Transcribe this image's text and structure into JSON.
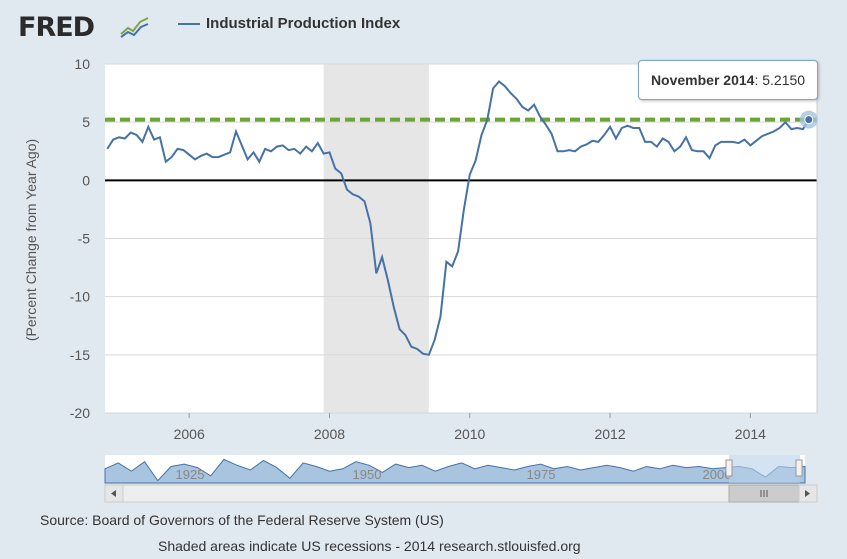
{
  "header": {
    "logo_text": "FRED",
    "logo_icon": "chart-line-icon"
  },
  "legend": {
    "series_label": "Industrial Production Index",
    "series_color": "#4572a7"
  },
  "tooltip": {
    "date": "November 2014",
    "value": "5.2150"
  },
  "navigator": {
    "tick_labels": [
      "1925",
      "1950",
      "1975",
      "2000"
    ],
    "scroll_left_icon": "arrow-left-icon",
    "scroll_right_icon": "arrow-right-icon",
    "thumb_grip_icon": "grip-icon"
  },
  "footer": {
    "source": "Source: Board of Governors of the Federal Reserve System (US)",
    "shaded_note": "Shaded areas indicate US recessions - 2014 research.stlouisfed.org"
  },
  "colors": {
    "line": "#4572a7",
    "reference_line": "#6aa536",
    "recession_shade": "#e6e6e6",
    "zero_line": "#000000"
  },
  "chart_data": {
    "type": "line",
    "title": "Industrial Production Index",
    "xlabel": "",
    "ylabel": "(Percent Change from Year Ago)",
    "xlim": [
      2004.8,
      2014.95
    ],
    "ylim": [
      -20,
      10
    ],
    "y_ticks": [
      10,
      5,
      0,
      -5,
      -10,
      -15,
      -20
    ],
    "x_ticks": [
      2006,
      2008,
      2010,
      2012,
      2014
    ],
    "recession": [
      2007.917,
      2009.417
    ],
    "reference_value": 5.215,
    "zero_value": 0,
    "highlight": {
      "x": 2014.833,
      "y": 5.215
    },
    "series": [
      {
        "name": "Industrial Production Index",
        "x": [
          2004.833,
          2004.917,
          2005.0,
          2005.083,
          2005.167,
          2005.25,
          2005.333,
          2005.417,
          2005.5,
          2005.583,
          2005.667,
          2005.75,
          2005.833,
          2005.917,
          2006.0,
          2006.083,
          2006.167,
          2006.25,
          2006.333,
          2006.417,
          2006.5,
          2006.583,
          2006.667,
          2006.75,
          2006.833,
          2006.917,
          2007.0,
          2007.083,
          2007.167,
          2007.25,
          2007.333,
          2007.417,
          2007.5,
          2007.583,
          2007.667,
          2007.75,
          2007.833,
          2007.917,
          2008.0,
          2008.083,
          2008.167,
          2008.25,
          2008.333,
          2008.417,
          2008.5,
          2008.583,
          2008.667,
          2008.75,
          2008.833,
          2008.917,
          2009.0,
          2009.083,
          2009.167,
          2009.25,
          2009.333,
          2009.417,
          2009.5,
          2009.583,
          2009.667,
          2009.75,
          2009.833,
          2009.917,
          2010.0,
          2010.083,
          2010.167,
          2010.25,
          2010.333,
          2010.417,
          2010.5,
          2010.583,
          2010.667,
          2010.75,
          2010.833,
          2010.917,
          2011.0,
          2011.083,
          2011.167,
          2011.25,
          2011.333,
          2011.417,
          2011.5,
          2011.583,
          2011.667,
          2011.75,
          2011.833,
          2011.917,
          2012.0,
          2012.083,
          2012.167,
          2012.25,
          2012.333,
          2012.417,
          2012.5,
          2012.583,
          2012.667,
          2012.75,
          2012.833,
          2012.917,
          2013.0,
          2013.083,
          2013.167,
          2013.25,
          2013.333,
          2013.417,
          2013.5,
          2013.583,
          2013.667,
          2013.75,
          2013.833,
          2013.917,
          2014.0,
          2014.083,
          2014.167,
          2014.25,
          2014.333,
          2014.417,
          2014.5,
          2014.583,
          2014.667,
          2014.75,
          2014.833
        ],
        "values": [
          2.7,
          3.5,
          3.7,
          3.6,
          4.1,
          3.9,
          3.3,
          4.6,
          3.5,
          3.7,
          1.6,
          2.0,
          2.7,
          2.6,
          2.2,
          1.8,
          2.1,
          2.3,
          2.0,
          2.0,
          2.2,
          2.4,
          4.2,
          3.0,
          1.8,
          2.4,
          1.6,
          2.7,
          2.5,
          2.9,
          3.0,
          2.6,
          2.7,
          2.3,
          2.9,
          2.5,
          3.2,
          2.3,
          2.4,
          1.0,
          0.6,
          -0.8,
          -1.2,
          -1.4,
          -1.8,
          -3.7,
          -8.0,
          -6.6,
          -8.6,
          -10.9,
          -12.8,
          -13.3,
          -14.3,
          -14.5,
          -14.9,
          -15.0,
          -13.7,
          -11.7,
          -7.0,
          -7.4,
          -6.1,
          -2.5,
          0.5,
          1.7,
          3.9,
          5.2,
          7.9,
          8.5,
          8.1,
          7.5,
          7.0,
          6.3,
          6.0,
          6.5,
          5.5,
          4.8,
          4.0,
          2.5,
          2.5,
          2.6,
          2.5,
          2.9,
          3.1,
          3.4,
          3.3,
          3.9,
          4.6,
          3.6,
          4.5,
          4.7,
          4.5,
          4.5,
          3.3,
          3.3,
          2.9,
          3.6,
          3.3,
          2.5,
          2.9,
          3.7,
          2.6,
          2.5,
          2.5,
          1.9,
          3.0,
          3.3,
          3.3,
          3.3,
          3.2,
          3.5,
          3.0,
          3.4,
          3.8,
          4.0,
          4.2,
          4.5,
          5.0,
          4.4,
          4.5,
          4.4,
          5.215
        ]
      }
    ],
    "navigator_series": [
      2.0,
      4.5,
      1.0,
      5.0,
      -3.0,
      3.0,
      4.0,
      2.5,
      -1.0,
      6.0,
      3.5,
      1.5,
      5.5,
      2.5,
      -2.0,
      4.5,
      3.0,
      1.0,
      2.0,
      5.0,
      3.5,
      0.5,
      4.0,
      2.5,
      3.5,
      1.0,
      3.0,
      4.5,
      2.0,
      3.5,
      2.5,
      1.5,
      3.0,
      4.0,
      2.0,
      3.0,
      1.5,
      2.5,
      3.5,
      2.5,
      1.0,
      3.0,
      2.0,
      3.5,
      2.5,
      3.0,
      2.0,
      2.5,
      3.0,
      2.0,
      -1.5,
      3.0,
      2.5,
      3.0
    ]
  }
}
